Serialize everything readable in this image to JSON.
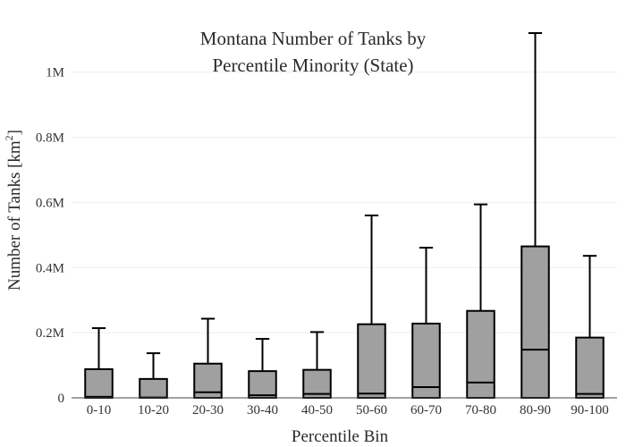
{
  "chart_data": {
    "type": "box",
    "title_lines": [
      "Montana Number of Tanks by",
      "Percentile Minority (State)"
    ],
    "xlabel": "Percentile Bin",
    "ylabel_main": "Number of Tanks  [km",
    "ylabel_sup": "2",
    "ylabel_close": "]",
    "ylim": [
      0,
      1120000
    ],
    "yticks": [
      0,
      200000,
      400000,
      600000,
      800000,
      1000000
    ],
    "ytick_labels": [
      "0",
      "0.2M",
      "0.4M",
      "0.6M",
      "0.8M",
      "1M"
    ],
    "grid": true,
    "colors": {
      "box_fill": "#a0a0a0",
      "stroke": "#000000",
      "grid": "#eeeeee",
      "axis": "#444444"
    },
    "categories": [
      "0-10",
      "10-20",
      "20-30",
      "30-40",
      "40-50",
      "50-60",
      "60-70",
      "70-80",
      "80-90",
      "90-100"
    ],
    "boxes": [
      {
        "min": 0,
        "q1": 0,
        "median": 3000,
        "q3": 88000,
        "max": 214000
      },
      {
        "min": 0,
        "q1": 0,
        "median": 1000,
        "q3": 58000,
        "max": 137000
      },
      {
        "min": 0,
        "q1": 0,
        "median": 17000,
        "q3": 105000,
        "max": 243000
      },
      {
        "min": 0,
        "q1": 0,
        "median": 8000,
        "q3": 82000,
        "max": 181000
      },
      {
        "min": 0,
        "q1": 0,
        "median": 12000,
        "q3": 86000,
        "max": 202000
      },
      {
        "min": 0,
        "q1": 0,
        "median": 13000,
        "q3": 226000,
        "max": 560000
      },
      {
        "min": 0,
        "q1": 0,
        "median": 33000,
        "q3": 228000,
        "max": 461000
      },
      {
        "min": 0,
        "q1": 0,
        "median": 47000,
        "q3": 267000,
        "max": 594000
      },
      {
        "min": 0,
        "q1": 0,
        "median": 148000,
        "q3": 465000,
        "max": 1120000
      },
      {
        "min": 0,
        "q1": 0,
        "median": 12000,
        "q3": 185000,
        "max": 436000
      }
    ]
  }
}
